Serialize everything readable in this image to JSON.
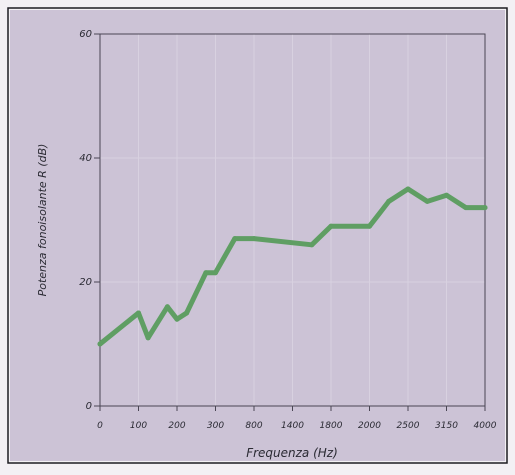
{
  "chart_data": {
    "type": "line",
    "title": "",
    "xlabel": "Frequenza (Hz)",
    "ylabel": "Potenza fonoisolante R (dB)",
    "x_tick_labels": [
      "0",
      "100",
      "200",
      "300",
      "800",
      "1400",
      "1800",
      "2000",
      "2500",
      "3150",
      "4000"
    ],
    "y_ticks": [
      0,
      20,
      40,
      60
    ],
    "ylim": [
      0,
      60
    ],
    "grid": true,
    "series": [
      {
        "name": "",
        "x_positions": [
          0,
          1,
          1.25,
          1.75,
          2,
          2.25,
          2.75,
          3,
          3.5,
          4,
          5.5,
          6,
          7,
          7.5,
          8,
          8.5,
          9,
          9.5,
          10
        ],
        "values": [
          10,
          15,
          11,
          16,
          14,
          15,
          21.5,
          21.5,
          27,
          27,
          26,
          29,
          29,
          33,
          35,
          33,
          34,
          32,
          32
        ]
      }
    ],
    "colors": {
      "background": "#f3f0f4",
      "plot_area": "#ccc3d6",
      "axes": "#4a4654",
      "grid": "#d8d1e0",
      "series_line": "#5f9e63",
      "text": "#2a2a33"
    }
  }
}
